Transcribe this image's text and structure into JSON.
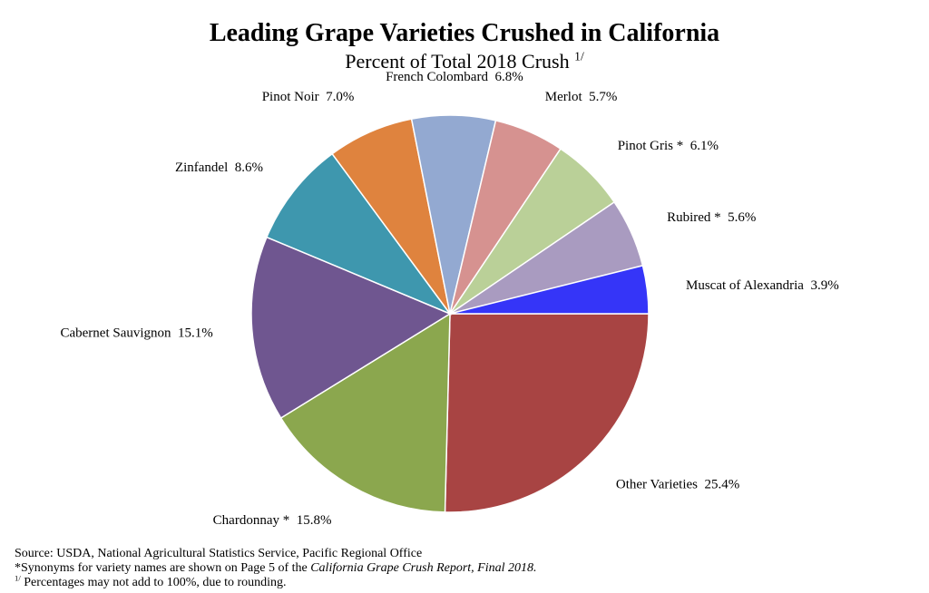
{
  "chart_data": {
    "type": "pie",
    "title": "Leading Grape Varieties Crushed in California",
    "subtitle": "Percent of Total 2018 Crush",
    "subtitle_marker": "1/",
    "slices": [
      {
        "label": "Other Varieties",
        "value_label": "25.4%",
        "value": 25.4,
        "color": "#A84443"
      },
      {
        "label": "Chardonnay *",
        "value_label": "15.8%",
        "value": 15.8,
        "color": "#8BA74E"
      },
      {
        "label": "Cabernet Sauvignon",
        "value_label": "15.1%",
        "value": 15.1,
        "color": "#6F5690"
      },
      {
        "label": "Zinfandel",
        "value_label": "8.6%",
        "value": 8.6,
        "color": "#3E97AE"
      },
      {
        "label": "Pinot Noir",
        "value_label": "7.0%",
        "value": 7.0,
        "color": "#DF833E"
      },
      {
        "label": "French Colombard",
        "value_label": "6.8%",
        "value": 6.8,
        "color": "#93A9D1"
      },
      {
        "label": "Merlot",
        "value_label": "5.7%",
        "value": 5.7,
        "color": "#D69290"
      },
      {
        "label": "Pinot Gris *",
        "value_label": "6.1%",
        "value": 6.1,
        "color": "#BAD098"
      },
      {
        "label": "Rubired *",
        "value_label": "5.6%",
        "value": 5.6,
        "color": "#A99BC0"
      },
      {
        "label": "Muscat of Alexandria",
        "value_label": "3.9%",
        "value": 3.9,
        "color": "#3535F8"
      }
    ],
    "legend": "none",
    "start_angle": "3 o'clock",
    "direction": "clockwise"
  },
  "footnotes": {
    "source": "Source: USDA, National Agricultural Statistics Service, Pacific  Regional  Office",
    "synonyms_prefix": "*Synonyms for variety names are shown on Page 5 of the ",
    "synonyms_report": "California Grape Crush Report, Final 2018.",
    "rounding_marker": "1/",
    "rounding_text": " Percentages may not add to 100%, due to rounding."
  }
}
